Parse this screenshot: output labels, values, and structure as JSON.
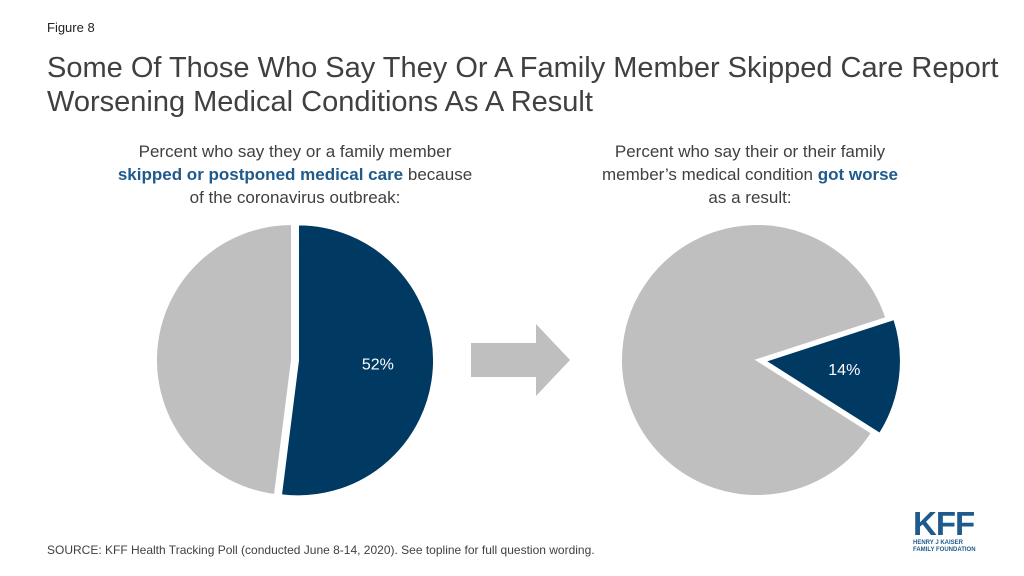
{
  "figure_label": "Figure 8",
  "title": "Some Of Those Who Say They Or A Family Member Skipped Care Report Worsening Medical Conditions As A Result",
  "left_subtitle": {
    "line1": "Percent who say they or a family member",
    "highlight": "skipped or postponed medical care",
    "after_highlight": " because",
    "line3": "of the coronavirus outbreak:"
  },
  "right_subtitle": {
    "line1": "Percent who say their or their family",
    "before_highlight": "member’s medical condition ",
    "highlight": "got worse",
    "line3": "as a result:"
  },
  "source": "SOURCE: KFF Health Tracking Poll (conducted June 8-14, 2020). See topline for full question wording.",
  "logo": {
    "mark": "KFF",
    "line1": "HENRY J KAISER",
    "line2": "FAMILY FOUNDATION"
  },
  "colors": {
    "highlight": "#003a63",
    "rest": "#bfbfbf",
    "arrow": "#bfbfbf",
    "title_text": "#404040",
    "accent_text": "#1f5a8c"
  },
  "chart_data": [
    {
      "type": "pie",
      "slices": [
        {
          "value": 52,
          "label": "52%",
          "highlighted": true
        },
        {
          "value": 48,
          "label": "",
          "highlighted": false
        }
      ]
    },
    {
      "type": "pie",
      "slices": [
        {
          "value": 14,
          "label": "14%",
          "highlighted": true
        },
        {
          "value": 86,
          "label": "",
          "highlighted": false
        }
      ]
    }
  ]
}
